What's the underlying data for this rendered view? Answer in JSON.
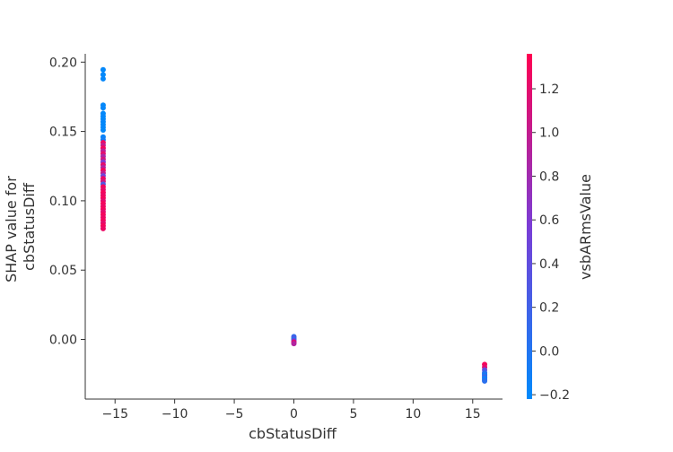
{
  "chart_data": {
    "type": "scatter",
    "title": "",
    "xlabel": "cbStatusDiff",
    "ylabel": "SHAP value for cbStatusDiff",
    "ylabel_lines": [
      "SHAP value for",
      "cbStatusDiff"
    ],
    "xlim": [
      -17.5,
      17.5
    ],
    "ylim": [
      -0.043,
      0.206
    ],
    "xticks": [
      {
        "value": -15,
        "label": "−15"
      },
      {
        "value": -10,
        "label": "−10"
      },
      {
        "value": -5,
        "label": "−5"
      },
      {
        "value": 0,
        "label": "0"
      },
      {
        "value": 5,
        "label": "5"
      },
      {
        "value": 10,
        "label": "10"
      },
      {
        "value": 15,
        "label": "15"
      }
    ],
    "yticks": [
      {
        "value": 0.0,
        "label": "0.00"
      },
      {
        "value": 0.05,
        "label": "0.05"
      },
      {
        "value": 0.1,
        "label": "0.10"
      },
      {
        "value": 0.15,
        "label": "0.15"
      },
      {
        "value": 0.2,
        "label": "0.20"
      }
    ],
    "grid": false,
    "colorbar": {
      "label": "vsbARmsValue",
      "range": [
        -0.22,
        1.36
      ],
      "colors": [
        "#008afb",
        "#7a3dd6",
        "#ff0052"
      ],
      "ticks": [
        {
          "value": -0.2,
          "label": "−0.2"
        },
        {
          "value": 0.0,
          "label": "0.0"
        },
        {
          "value": 0.2,
          "label": "0.2"
        },
        {
          "value": 0.4,
          "label": "0.4"
        },
        {
          "value": 0.6,
          "label": "0.6"
        },
        {
          "value": 0.8,
          "label": "0.8"
        },
        {
          "value": 1.0,
          "label": "1.0"
        },
        {
          "value": 1.2,
          "label": "1.2"
        }
      ]
    },
    "points": [
      {
        "x": -16,
        "y": 0.1945,
        "c": -0.2
      },
      {
        "x": -16,
        "y": 0.191,
        "c": -0.2
      },
      {
        "x": -16,
        "y": 0.188,
        "c": -0.19
      },
      {
        "x": -16,
        "y": 0.169,
        "c": -0.2
      },
      {
        "x": -16,
        "y": 0.167,
        "c": -0.18
      },
      {
        "x": -16,
        "y": 0.163,
        "c": -0.2
      },
      {
        "x": -16,
        "y": 0.161,
        "c": -0.19
      },
      {
        "x": -16,
        "y": 0.159,
        "c": -0.2
      },
      {
        "x": -16,
        "y": 0.157,
        "c": -0.18
      },
      {
        "x": -16,
        "y": 0.155,
        "c": -0.2
      },
      {
        "x": -16,
        "y": 0.153,
        "c": -0.19
      },
      {
        "x": -16,
        "y": 0.151,
        "c": -0.2
      },
      {
        "x": -16,
        "y": 0.146,
        "c": -0.15
      },
      {
        "x": -16,
        "y": 0.144,
        "c": -0.1
      },
      {
        "x": -16,
        "y": 0.142,
        "c": 1.25
      },
      {
        "x": -16,
        "y": 0.14,
        "c": 1.0
      },
      {
        "x": -16,
        "y": 0.138,
        "c": 1.3
      },
      {
        "x": -16,
        "y": 0.136,
        "c": 0.95
      },
      {
        "x": -16,
        "y": 0.134,
        "c": 1.2
      },
      {
        "x": -16,
        "y": 0.132,
        "c": 0.85
      },
      {
        "x": -16,
        "y": 0.13,
        "c": 1.1
      },
      {
        "x": -16,
        "y": 0.128,
        "c": 0.6
      },
      {
        "x": -16,
        "y": 0.126,
        "c": 1.2
      },
      {
        "x": -16,
        "y": 0.124,
        "c": 0.9
      },
      {
        "x": -16,
        "y": 0.122,
        "c": 1.3
      },
      {
        "x": -16,
        "y": 0.12,
        "c": 1.0
      },
      {
        "x": -16,
        "y": 0.118,
        "c": 0.5
      },
      {
        "x": -16,
        "y": 0.116,
        "c": 1.25
      },
      {
        "x": -16,
        "y": 0.114,
        "c": 1.1
      },
      {
        "x": -16,
        "y": 0.112,
        "c": 0.3
      },
      {
        "x": -16,
        "y": 0.11,
        "c": 1.3
      },
      {
        "x": -16,
        "y": 0.108,
        "c": 1.2
      },
      {
        "x": -16,
        "y": 0.106,
        "c": 1.3
      },
      {
        "x": -16,
        "y": 0.104,
        "c": 1.25
      },
      {
        "x": -16,
        "y": 0.102,
        "c": 1.3
      },
      {
        "x": -16,
        "y": 0.1,
        "c": 1.2
      },
      {
        "x": -16,
        "y": 0.098,
        "c": 1.3
      },
      {
        "x": -16,
        "y": 0.096,
        "c": 1.25
      },
      {
        "x": -16,
        "y": 0.094,
        "c": 1.3
      },
      {
        "x": -16,
        "y": 0.092,
        "c": 1.2
      },
      {
        "x": -16,
        "y": 0.09,
        "c": 1.3
      },
      {
        "x": -16,
        "y": 0.088,
        "c": 1.25
      },
      {
        "x": -16,
        "y": 0.086,
        "c": 1.3
      },
      {
        "x": -16,
        "y": 0.084,
        "c": 1.2
      },
      {
        "x": -16,
        "y": 0.082,
        "c": 1.3
      },
      {
        "x": -16,
        "y": 0.08,
        "c": 1.25
      },
      {
        "x": 0,
        "y": 0.002,
        "c": 0.1
      },
      {
        "x": 0,
        "y": 0.001,
        "c": 0.3
      },
      {
        "x": 0,
        "y": 0.0,
        "c": 0.0
      },
      {
        "x": 0,
        "y": -0.001,
        "c": 0.6
      },
      {
        "x": 0,
        "y": -0.002,
        "c": 1.2
      },
      {
        "x": 0,
        "y": -0.003,
        "c": 0.9
      },
      {
        "x": 16,
        "y": -0.018,
        "c": 1.3
      },
      {
        "x": 16,
        "y": -0.02,
        "c": 1.2
      },
      {
        "x": 16,
        "y": -0.022,
        "c": 0.4
      },
      {
        "x": 16,
        "y": -0.024,
        "c": 0.1
      },
      {
        "x": 16,
        "y": -0.025,
        "c": 0.0
      },
      {
        "x": 16,
        "y": -0.026,
        "c": -0.1
      },
      {
        "x": 16,
        "y": -0.027,
        "c": 0.2
      },
      {
        "x": 16,
        "y": -0.028,
        "c": -0.15
      },
      {
        "x": 16,
        "y": -0.029,
        "c": -0.05
      },
      {
        "x": 16,
        "y": -0.03,
        "c": 0.05
      }
    ]
  }
}
